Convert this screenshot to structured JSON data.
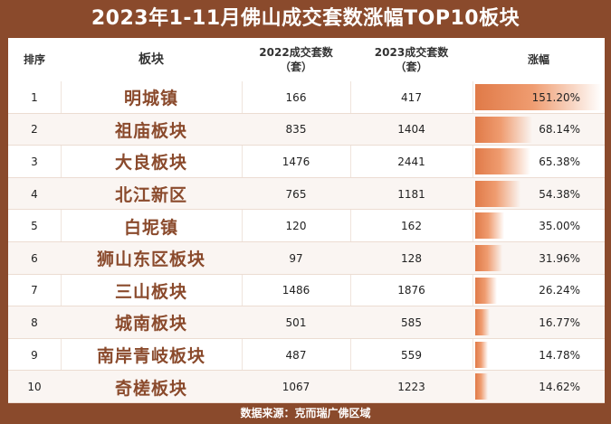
{
  "title": "2023年1-11月佛山成交套数涨幅TOP10板块",
  "headers": {
    "rank": "排序",
    "name": "板块",
    "y2022": "2022成交套数\n（套）",
    "y2023": "2023成交套数\n（套）",
    "gain": "涨幅"
  },
  "rows": [
    {
      "rank": "1",
      "name": "明城镇",
      "y2022": "166",
      "y2023": "417",
      "gain": "151.20%",
      "gain_value": 151.2
    },
    {
      "rank": "2",
      "name": "祖庙板块",
      "y2022": "835",
      "y2023": "1404",
      "gain": "68.14%",
      "gain_value": 68.14
    },
    {
      "rank": "3",
      "name": "大良板块",
      "y2022": "1476",
      "y2023": "2441",
      "gain": "65.38%",
      "gain_value": 65.38
    },
    {
      "rank": "4",
      "name": "北江新区",
      "y2022": "765",
      "y2023": "1181",
      "gain": "54.38%",
      "gain_value": 54.38
    },
    {
      "rank": "5",
      "name": "白坭镇",
      "y2022": "120",
      "y2023": "162",
      "gain": "35.00%",
      "gain_value": 35.0
    },
    {
      "rank": "6",
      "name": "狮山东区板块",
      "y2022": "97",
      "y2023": "128",
      "gain": "31.96%",
      "gain_value": 31.96
    },
    {
      "rank": "7",
      "name": "三山板块",
      "y2022": "1486",
      "y2023": "1876",
      "gain": "26.24%",
      "gain_value": 26.24
    },
    {
      "rank": "8",
      "name": "城南板块",
      "y2022": "501",
      "y2023": "585",
      "gain": "16.77%",
      "gain_value": 16.77
    },
    {
      "rank": "9",
      "name": "南岸青岐板块",
      "y2022": "487",
      "y2023": "559",
      "gain": "14.78%",
      "gain_value": 14.78
    },
    {
      "rank": "10",
      "name": "奇槎板块",
      "y2022": "1067",
      "y2023": "1223",
      "gain": "14.62%",
      "gain_value": 14.62
    }
  ],
  "footer": "数据来源：克而瑞广佛区域",
  "colors": {
    "frame": "#8a4a2c",
    "bar": "#e07a48",
    "name_text": "#8a4a2c"
  }
}
